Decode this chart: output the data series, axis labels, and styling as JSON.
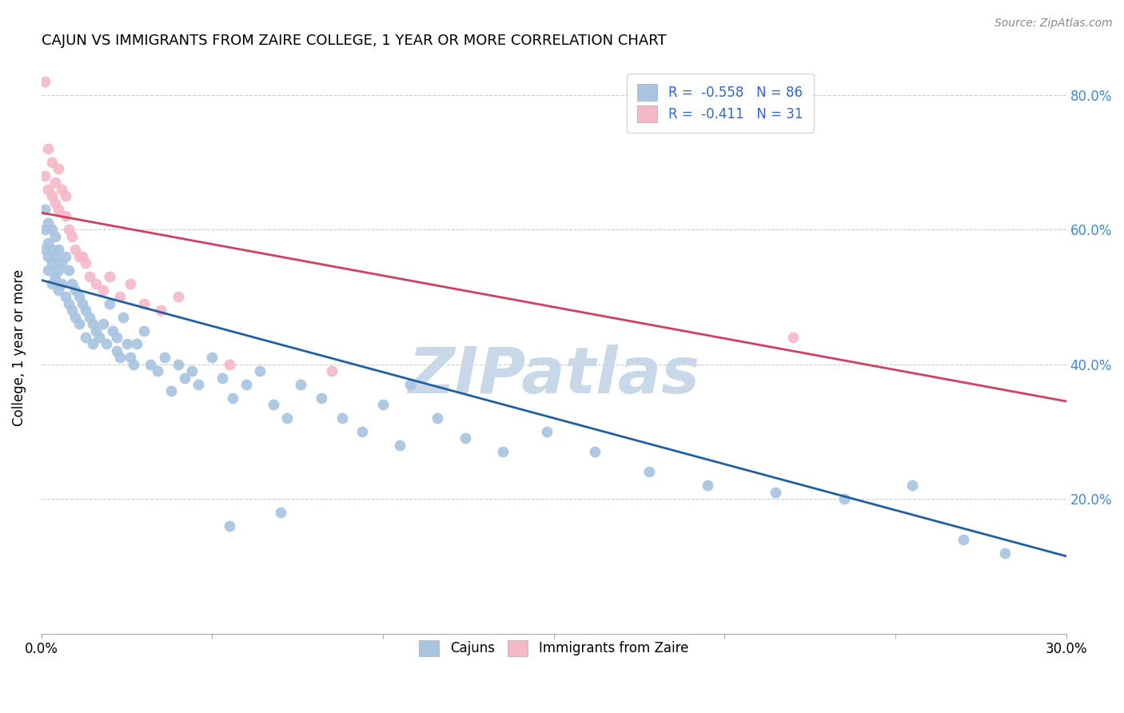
{
  "title": "CAJUN VS IMMIGRANTS FROM ZAIRE COLLEGE, 1 YEAR OR MORE CORRELATION CHART",
  "source": "Source: ZipAtlas.com",
  "ylabel": "College, 1 year or more",
  "xlim": [
    0.0,
    0.3
  ],
  "ylim": [
    0.0,
    0.85
  ],
  "yticks": [
    0.0,
    0.2,
    0.4,
    0.6,
    0.8
  ],
  "ytick_labels": [
    "",
    "20.0%",
    "40.0%",
    "60.0%",
    "80.0%"
  ],
  "xticks": [
    0.0,
    0.05,
    0.1,
    0.15,
    0.2,
    0.25,
    0.3
  ],
  "xtick_labels": [
    "0.0%",
    "",
    "",
    "",
    "",
    "",
    "30.0%"
  ],
  "cajun_color": "#a8c4e0",
  "zaire_color": "#f4b8c8",
  "cajun_line_color": "#2060a0",
  "zaire_line_color": "#d04060",
  "legend_R_cajun": "-0.558",
  "legend_N_cajun": "86",
  "legend_R_zaire": "-0.411",
  "legend_N_zaire": "31",
  "watermark": "ZIPatlas",
  "watermark_color": "#c8d8e8",
  "cajun_x": [
    0.001,
    0.001,
    0.001,
    0.002,
    0.002,
    0.002,
    0.002,
    0.003,
    0.003,
    0.003,
    0.003,
    0.004,
    0.004,
    0.004,
    0.005,
    0.005,
    0.005,
    0.006,
    0.006,
    0.007,
    0.007,
    0.008,
    0.008,
    0.009,
    0.009,
    0.01,
    0.01,
    0.011,
    0.011,
    0.012,
    0.013,
    0.013,
    0.014,
    0.015,
    0.015,
    0.016,
    0.017,
    0.018,
    0.019,
    0.02,
    0.021,
    0.022,
    0.022,
    0.023,
    0.024,
    0.025,
    0.026,
    0.027,
    0.028,
    0.03,
    0.032,
    0.034,
    0.036,
    0.038,
    0.04,
    0.042,
    0.044,
    0.046,
    0.05,
    0.053,
    0.056,
    0.06,
    0.064,
    0.068,
    0.072,
    0.076,
    0.082,
    0.088,
    0.094,
    0.1,
    0.108,
    0.116,
    0.124,
    0.135,
    0.148,
    0.162,
    0.178,
    0.195,
    0.215,
    0.235,
    0.255,
    0.27,
    0.282,
    0.105,
    0.07,
    0.055
  ],
  "cajun_y": [
    0.63,
    0.6,
    0.57,
    0.61,
    0.58,
    0.56,
    0.54,
    0.6,
    0.57,
    0.55,
    0.52,
    0.59,
    0.56,
    0.53,
    0.57,
    0.54,
    0.51,
    0.55,
    0.52,
    0.56,
    0.5,
    0.54,
    0.49,
    0.52,
    0.48,
    0.51,
    0.47,
    0.5,
    0.46,
    0.49,
    0.48,
    0.44,
    0.47,
    0.46,
    0.43,
    0.45,
    0.44,
    0.46,
    0.43,
    0.49,
    0.45,
    0.44,
    0.42,
    0.41,
    0.47,
    0.43,
    0.41,
    0.4,
    0.43,
    0.45,
    0.4,
    0.39,
    0.41,
    0.36,
    0.4,
    0.38,
    0.39,
    0.37,
    0.41,
    0.38,
    0.35,
    0.37,
    0.39,
    0.34,
    0.32,
    0.37,
    0.35,
    0.32,
    0.3,
    0.34,
    0.37,
    0.32,
    0.29,
    0.27,
    0.3,
    0.27,
    0.24,
    0.22,
    0.21,
    0.2,
    0.22,
    0.14,
    0.12,
    0.28,
    0.18,
    0.16
  ],
  "zaire_x": [
    0.001,
    0.001,
    0.002,
    0.002,
    0.003,
    0.003,
    0.004,
    0.004,
    0.005,
    0.005,
    0.006,
    0.007,
    0.007,
    0.008,
    0.009,
    0.01,
    0.011,
    0.012,
    0.013,
    0.014,
    0.016,
    0.018,
    0.02,
    0.023,
    0.026,
    0.03,
    0.035,
    0.04,
    0.055,
    0.085,
    0.22
  ],
  "zaire_y": [
    0.82,
    0.68,
    0.72,
    0.66,
    0.7,
    0.65,
    0.67,
    0.64,
    0.69,
    0.63,
    0.66,
    0.65,
    0.62,
    0.6,
    0.59,
    0.57,
    0.56,
    0.56,
    0.55,
    0.53,
    0.52,
    0.51,
    0.53,
    0.5,
    0.52,
    0.49,
    0.48,
    0.5,
    0.4,
    0.39,
    0.44
  ],
  "cajun_line_x0": 0.0,
  "cajun_line_y0": 0.525,
  "cajun_line_x1": 0.3,
  "cajun_line_y1": 0.115,
  "zaire_line_x0": 0.0,
  "zaire_line_y0": 0.625,
  "zaire_line_x1": 0.3,
  "zaire_line_y1": 0.345
}
